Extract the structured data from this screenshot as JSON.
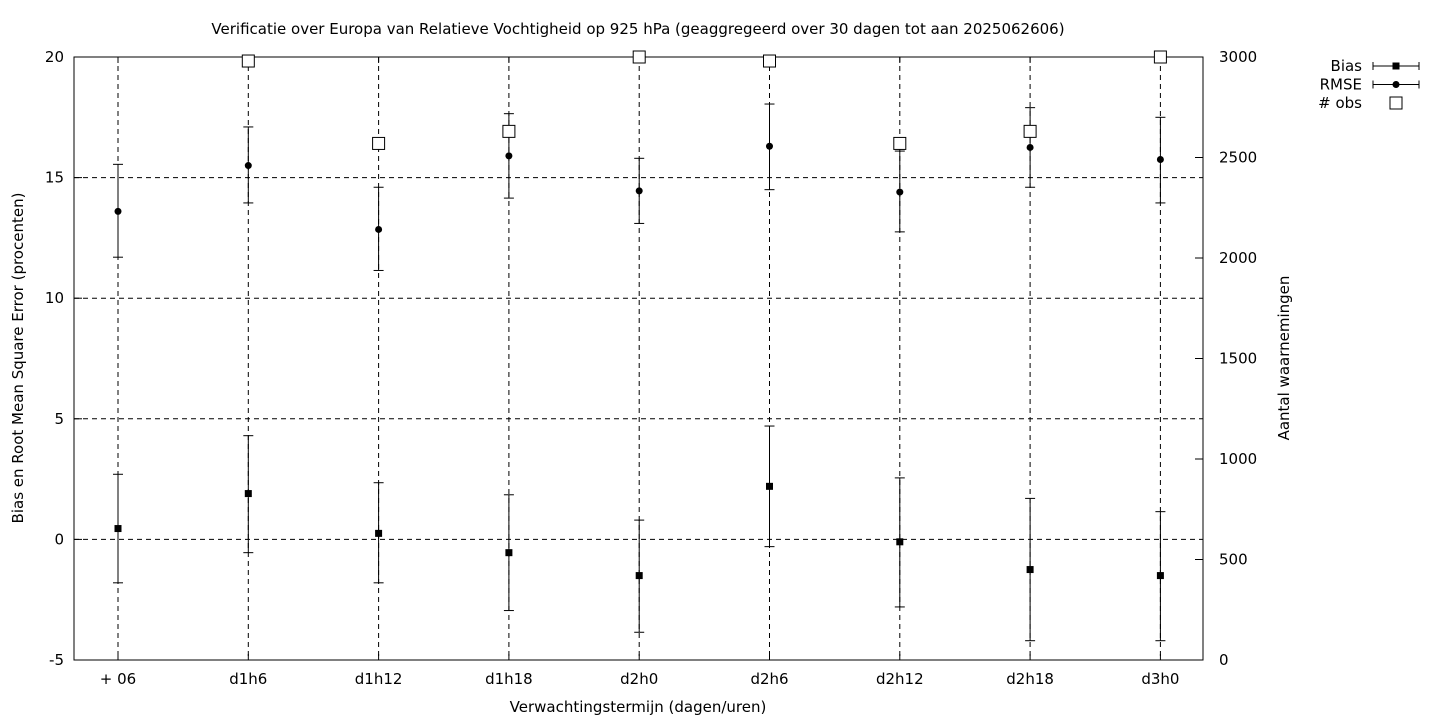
{
  "chart_data": {
    "type": "scatter",
    "title": "Verificatie over Europa van Relatieve Vochtigheid op 925 hPa (geaggregeerd over 30 dagen tot aan 2025062606)",
    "xlabel": "Verwachtingstermijn (dagen/uren)",
    "ylabel": "Bias en Root Mean Square Error (procenten)",
    "y2label": "Aantal waarnemingen",
    "categories": [
      "+ 06",
      "d1h6",
      "d1h12",
      "d1h18",
      "d2h0",
      "d2h6",
      "d2h12",
      "d2h18",
      "d3h0"
    ],
    "ylim": [
      -5,
      20
    ],
    "yticks": [
      -5,
      0,
      5,
      10,
      15,
      20
    ],
    "y2lim": [
      0,
      3000
    ],
    "y2ticks": [
      0,
      500,
      1000,
      1500,
      2000,
      2500,
      3000
    ],
    "grid": true,
    "legend_position": "top-right outside",
    "series": [
      {
        "name": "Bias",
        "marker": "square-filled",
        "axis": "left",
        "values": [
          0.45,
          1.9,
          0.25,
          -0.55,
          -1.5,
          2.2,
          -0.1,
          -1.25,
          -1.5
        ],
        "err_low": [
          -1.8,
          -0.55,
          -1.8,
          -2.95,
          -3.85,
          -0.3,
          -2.8,
          -4.2,
          -4.2
        ],
        "err_high": [
          2.7,
          4.3,
          2.35,
          1.85,
          0.8,
          4.7,
          2.55,
          1.7,
          1.15
        ]
      },
      {
        "name": "RMSE",
        "marker": "circle-filled",
        "axis": "left",
        "values": [
          13.6,
          15.5,
          12.85,
          15.9,
          14.45,
          16.3,
          14.4,
          16.25,
          15.75
        ],
        "err_low": [
          11.7,
          13.95,
          11.15,
          14.15,
          13.1,
          14.5,
          12.75,
          14.6,
          13.95
        ],
        "err_high": [
          15.55,
          17.1,
          14.6,
          17.65,
          15.8,
          18.05,
          16.1,
          17.9,
          17.5
        ]
      },
      {
        "name": "# obs",
        "marker": "square-open",
        "axis": "right",
        "values": [
          null,
          2980,
          2570,
          2630,
          3000,
          2980,
          2570,
          2630,
          3000
        ]
      }
    ]
  }
}
